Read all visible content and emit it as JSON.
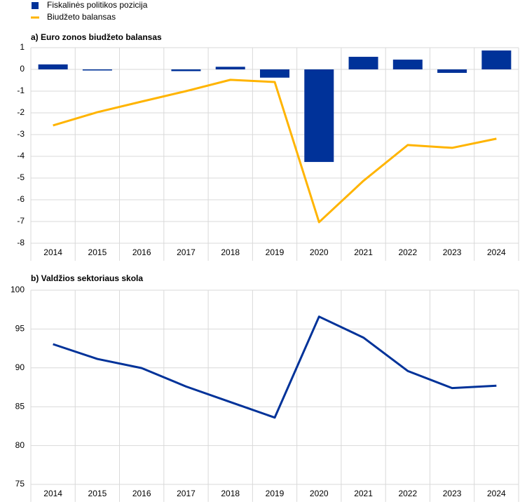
{
  "chart_data": [
    {
      "type": "bar",
      "title": "a) Euro zonos biudžeto balansas",
      "categories": [
        "2014",
        "2015",
        "2016",
        "2017",
        "2018",
        "2019",
        "2020",
        "2021",
        "2022",
        "2023",
        "2024"
      ],
      "series": [
        {
          "name": "Fiskalinės politikos pozicija",
          "type": "bar",
          "color": "#003299",
          "values": [
            0.23,
            -0.05,
            0,
            -0.08,
            0.12,
            -0.38,
            -4.26,
            0.58,
            0.45,
            -0.16,
            0.87
          ]
        },
        {
          "name": "Biudžeto balansas",
          "type": "line",
          "color": "#ffb400",
          "values": [
            -2.58,
            -1.97,
            -1.48,
            -1.0,
            -0.48,
            -0.58,
            -7.03,
            -5.13,
            -3.48,
            -3.61,
            -3.19
          ]
        }
      ],
      "ylim": [
        -8,
        1
      ],
      "yticks": [
        -8,
        -7,
        -6,
        -5,
        -4,
        -3,
        -2,
        -1,
        0,
        1
      ],
      "grid": true
    },
    {
      "type": "line",
      "title": "b) Valdžios sektoriaus skola",
      "categories": [
        "2014",
        "2015",
        "2016",
        "2017",
        "2018",
        "2019",
        "2020",
        "2021",
        "2022",
        "2023",
        "2024"
      ],
      "series": [
        {
          "type": "line",
          "color": "#003299",
          "values": [
            93.05,
            91.15,
            89.97,
            87.6,
            85.6,
            83.6,
            96.6,
            93.9,
            89.6,
            87.4,
            87.7
          ]
        }
      ],
      "ylim": [
        75,
        100
      ],
      "yticks": [
        75,
        80,
        85,
        90,
        95,
        100
      ],
      "grid": true
    }
  ]
}
